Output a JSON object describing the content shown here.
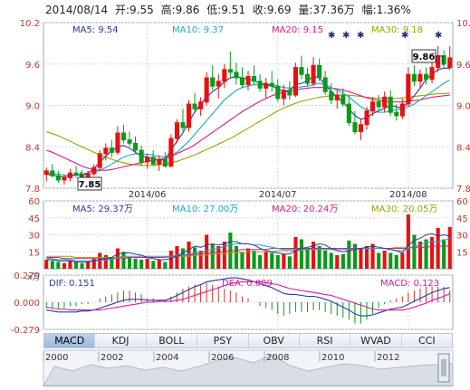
{
  "header": {
    "date": "2014/08/14",
    "open_label": "开:",
    "open": "9.55",
    "high_label": "高:",
    "high": "9.86",
    "low_label": "低:",
    "low": "9.51",
    "close_label": "收:",
    "close": "9.69",
    "volume_label": "量:",
    "volume": "37.36万",
    "change_label": "幅:",
    "change": "1.36%"
  },
  "ma_price": [
    {
      "label": "MA5: 9.54",
      "color": "#2a3a9e"
    },
    {
      "label": "MA10: 9.37",
      "color": "#17a9c9"
    },
    {
      "label": "MA20: 9.15",
      "color": "#e0197d"
    },
    {
      "label": "MA30: 9.18",
      "color": "#9aa500"
    }
  ],
  "ma_volume": [
    {
      "label": "MA5: 29.37万",
      "color": "#2a3a9e"
    },
    {
      "label": "MA10: 27.00万",
      "color": "#17a9c9"
    },
    {
      "label": "MA20: 20.24万",
      "color": "#e0197d"
    },
    {
      "label": "MA30: 20.05万",
      "color": "#9aa500"
    }
  ],
  "macd_labels": {
    "dif": "DIF: 0.151",
    "dea": "DEA: 0.089",
    "macd": "MACD: 0.123",
    "unit": "x万"
  },
  "annotations": {
    "max": "9.86",
    "min": "7.85"
  },
  "tabs": [
    "MACD",
    "KDJ",
    "BOLL",
    "PSY",
    "OBV",
    "RSI",
    "WVAD",
    "CCI"
  ],
  "active_tab": "MACD",
  "timeline_years": [
    "2000",
    "2002",
    "2004",
    "2006",
    "2008",
    "2010",
    "2012"
  ],
  "colors": {
    "up": "#e81010",
    "down": "#0a9a1a",
    "ma5": "#2a3a9e",
    "ma10": "#17a9c9",
    "ma20": "#e0197d",
    "ma30": "#9aa500",
    "dif": "#2a3a9e",
    "dea": "#d61aa8",
    "grid": "#d8d8d8"
  },
  "chart_data": {
    "type": "candlestick",
    "price_axis": {
      "ticks": [
        "10.2",
        "9.6",
        "9.0",
        "8.4",
        "7.8"
      ],
      "values": [
        10.2,
        9.6,
        9.0,
        8.4,
        7.8
      ],
      "ylim": [
        7.8,
        10.2
      ]
    },
    "volume_axis": {
      "ticks": [
        "60",
        "45",
        "30",
        "15"
      ],
      "values": [
        60,
        45,
        30,
        15
      ],
      "ylim": [
        0,
        60
      ],
      "unit": "万"
    },
    "macd_axis": {
      "ticks": [
        "0.279",
        "0.000",
        "-0.279"
      ],
      "values": [
        0.279,
        0,
        -0.279
      ],
      "ylim": [
        -0.279,
        0.279
      ]
    },
    "x_labels": [
      {
        "label": "2014/06",
        "index": 17
      },
      {
        "label": "2014/07",
        "index": 39
      },
      {
        "label": "2014/08",
        "index": 61
      }
    ],
    "candles": [
      {
        "o": 8.0,
        "h": 8.1,
        "l": 7.9,
        "c": 8.05
      },
      {
        "o": 8.05,
        "h": 8.15,
        "l": 7.95,
        "c": 7.98
      },
      {
        "o": 7.98,
        "h": 8.05,
        "l": 7.88,
        "c": 7.92
      },
      {
        "o": 7.92,
        "h": 8.0,
        "l": 7.85,
        "c": 7.95
      },
      {
        "o": 7.95,
        "h": 8.08,
        "l": 7.9,
        "c": 8.02
      },
      {
        "o": 8.02,
        "h": 8.12,
        "l": 7.96,
        "c": 8.0
      },
      {
        "o": 8.0,
        "h": 8.06,
        "l": 7.92,
        "c": 7.97
      },
      {
        "o": 7.97,
        "h": 8.05,
        "l": 7.9,
        "c": 8.01
      },
      {
        "o": 8.01,
        "h": 8.15,
        "l": 7.98,
        "c": 8.1
      },
      {
        "o": 8.1,
        "h": 8.35,
        "l": 8.05,
        "c": 8.3
      },
      {
        "o": 8.3,
        "h": 8.45,
        "l": 8.2,
        "c": 8.38
      },
      {
        "o": 8.38,
        "h": 8.5,
        "l": 8.25,
        "c": 8.32
      },
      {
        "o": 8.32,
        "h": 8.7,
        "l": 8.28,
        "c": 8.6
      },
      {
        "o": 8.6,
        "h": 8.72,
        "l": 8.45,
        "c": 8.5
      },
      {
        "o": 8.5,
        "h": 8.62,
        "l": 8.4,
        "c": 8.45
      },
      {
        "o": 8.45,
        "h": 8.55,
        "l": 8.3,
        "c": 8.35
      },
      {
        "o": 8.35,
        "h": 8.42,
        "l": 8.12,
        "c": 8.18
      },
      {
        "o": 8.18,
        "h": 8.3,
        "l": 8.08,
        "c": 8.25
      },
      {
        "o": 8.25,
        "h": 8.35,
        "l": 8.12,
        "c": 8.15
      },
      {
        "o": 8.15,
        "h": 8.28,
        "l": 8.05,
        "c": 8.22
      },
      {
        "o": 8.22,
        "h": 8.32,
        "l": 8.1,
        "c": 8.12
      },
      {
        "o": 8.12,
        "h": 8.58,
        "l": 8.1,
        "c": 8.52
      },
      {
        "o": 8.52,
        "h": 8.8,
        "l": 8.45,
        "c": 8.75
      },
      {
        "o": 8.75,
        "h": 8.95,
        "l": 8.62,
        "c": 8.68
      },
      {
        "o": 8.68,
        "h": 9.08,
        "l": 8.62,
        "c": 9.02
      },
      {
        "o": 9.02,
        "h": 9.18,
        "l": 8.9,
        "c": 8.95
      },
      {
        "o": 8.95,
        "h": 9.12,
        "l": 8.85,
        "c": 9.05
      },
      {
        "o": 9.05,
        "h": 9.48,
        "l": 9.0,
        "c": 9.4
      },
      {
        "o": 9.4,
        "h": 9.58,
        "l": 9.22,
        "c": 9.28
      },
      {
        "o": 9.28,
        "h": 9.45,
        "l": 9.1,
        "c": 9.35
      },
      {
        "o": 9.35,
        "h": 9.6,
        "l": 9.25,
        "c": 9.52
      },
      {
        "o": 9.52,
        "h": 9.78,
        "l": 9.4,
        "c": 9.48
      },
      {
        "o": 9.48,
        "h": 9.62,
        "l": 9.3,
        "c": 9.4
      },
      {
        "o": 9.4,
        "h": 9.55,
        "l": 9.25,
        "c": 9.3
      },
      {
        "o": 9.3,
        "h": 9.5,
        "l": 9.22,
        "c": 9.42
      },
      {
        "o": 9.42,
        "h": 9.58,
        "l": 9.3,
        "c": 9.35
      },
      {
        "o": 9.35,
        "h": 9.45,
        "l": 9.2,
        "c": 9.25
      },
      {
        "o": 9.25,
        "h": 9.4,
        "l": 9.1,
        "c": 9.32
      },
      {
        "o": 9.32,
        "h": 9.5,
        "l": 9.2,
        "c": 9.28
      },
      {
        "o": 9.28,
        "h": 9.38,
        "l": 9.05,
        "c": 9.1
      },
      {
        "o": 9.1,
        "h": 9.3,
        "l": 9.0,
        "c": 9.22
      },
      {
        "o": 9.22,
        "h": 9.35,
        "l": 9.08,
        "c": 9.15
      },
      {
        "o": 9.15,
        "h": 9.62,
        "l": 9.12,
        "c": 9.55
      },
      {
        "o": 9.55,
        "h": 9.72,
        "l": 9.38,
        "c": 9.45
      },
      {
        "o": 9.45,
        "h": 9.55,
        "l": 9.28,
        "c": 9.32
      },
      {
        "o": 9.32,
        "h": 9.7,
        "l": 9.28,
        "c": 9.58
      },
      {
        "o": 9.58,
        "h": 9.68,
        "l": 9.35,
        "c": 9.4
      },
      {
        "o": 9.4,
        "h": 9.5,
        "l": 9.15,
        "c": 9.2
      },
      {
        "o": 9.2,
        "h": 9.32,
        "l": 9.02,
        "c": 9.08
      },
      {
        "o": 9.08,
        "h": 9.22,
        "l": 8.95,
        "c": 9.15
      },
      {
        "o": 9.15,
        "h": 9.25,
        "l": 8.98,
        "c": 9.02
      },
      {
        "o": 9.02,
        "h": 9.15,
        "l": 8.7,
        "c": 8.75
      },
      {
        "o": 8.75,
        "h": 8.92,
        "l": 8.58,
        "c": 8.62
      },
      {
        "o": 8.62,
        "h": 8.8,
        "l": 8.5,
        "c": 8.72
      },
      {
        "o": 8.72,
        "h": 8.98,
        "l": 8.65,
        "c": 8.92
      },
      {
        "o": 8.92,
        "h": 9.12,
        "l": 8.85,
        "c": 9.05
      },
      {
        "o": 9.05,
        "h": 9.15,
        "l": 8.92,
        "c": 8.98
      },
      {
        "o": 8.98,
        "h": 9.2,
        "l": 8.9,
        "c": 9.12
      },
      {
        "o": 9.12,
        "h": 9.22,
        "l": 8.85,
        "c": 8.9
      },
      {
        "o": 8.9,
        "h": 9.02,
        "l": 8.78,
        "c": 8.85
      },
      {
        "o": 8.85,
        "h": 9.1,
        "l": 8.8,
        "c": 9.02
      },
      {
        "o": 9.02,
        "h": 9.55,
        "l": 8.98,
        "c": 9.45
      },
      {
        "o": 9.45,
        "h": 9.58,
        "l": 9.28,
        "c": 9.35
      },
      {
        "o": 9.35,
        "h": 9.52,
        "l": 9.25,
        "c": 9.45
      },
      {
        "o": 9.45,
        "h": 9.55,
        "l": 9.3,
        "c": 9.38
      },
      {
        "o": 9.38,
        "h": 9.62,
        "l": 9.32,
        "c": 9.55
      },
      {
        "o": 9.55,
        "h": 9.86,
        "l": 9.48,
        "c": 9.72
      },
      {
        "o": 9.72,
        "h": 9.8,
        "l": 9.55,
        "c": 9.6
      },
      {
        "o": 9.55,
        "h": 9.86,
        "l": 9.51,
        "c": 9.69
      }
    ],
    "volume": [
      8,
      7,
      6,
      5,
      7,
      6,
      5,
      6,
      9,
      14,
      12,
      10,
      18,
      15,
      10,
      9,
      8,
      9,
      7,
      8,
      6,
      16,
      20,
      18,
      24,
      19,
      16,
      30,
      22,
      20,
      24,
      32,
      20,
      15,
      18,
      16,
      12,
      15,
      14,
      12,
      13,
      11,
      28,
      26,
      18,
      24,
      20,
      16,
      14,
      12,
      13,
      25,
      22,
      18,
      20,
      22,
      14,
      16,
      14,
      12,
      14,
      48,
      30,
      24,
      26,
      28,
      36,
      26,
      37
    ],
    "ma_lines": {
      "ma5": [
        8.0,
        7.99,
        7.97,
        7.96,
        7.98,
        7.99,
        8.0,
        8.02,
        8.08,
        8.18,
        8.26,
        8.34,
        8.4,
        8.42,
        8.38,
        8.32,
        8.27,
        8.25,
        8.22,
        8.2,
        8.22,
        8.35,
        8.48,
        8.6,
        8.76,
        8.9,
        9.02,
        9.12,
        9.2,
        9.26,
        9.34,
        9.4,
        9.42,
        9.4,
        9.38,
        9.36,
        9.32,
        9.3,
        9.28,
        9.24,
        9.2,
        9.22,
        9.3,
        9.32,
        9.36,
        9.42,
        9.4,
        9.3,
        9.2,
        9.12,
        9.05,
        8.95,
        8.85,
        8.8,
        8.82,
        8.88,
        8.92,
        8.96,
        9.0,
        8.98,
        8.96,
        9.04,
        9.14,
        9.25,
        9.38,
        9.45,
        9.52,
        9.54,
        9.54
      ],
      "ma10": [
        8.02,
        8.01,
        8.0,
        7.99,
        7.99,
        7.99,
        7.99,
        8.0,
        8.02,
        8.06,
        8.1,
        8.15,
        8.2,
        8.25,
        8.28,
        8.3,
        8.3,
        8.29,
        8.28,
        8.26,
        8.25,
        8.28,
        8.32,
        8.4,
        8.48,
        8.58,
        8.68,
        8.78,
        8.88,
        8.98,
        9.08,
        9.15,
        9.22,
        9.26,
        9.28,
        9.3,
        9.3,
        9.3,
        9.3,
        9.28,
        9.26,
        9.25,
        9.26,
        9.27,
        9.28,
        9.3,
        9.32,
        9.3,
        9.26,
        9.22,
        9.18,
        9.12,
        9.05,
        8.98,
        8.94,
        8.92,
        8.9,
        8.9,
        8.92,
        8.94,
        8.95,
        8.98,
        9.02,
        9.08,
        9.14,
        9.2,
        9.26,
        9.32,
        9.37
      ],
      "ma20": [
        8.35,
        8.32,
        8.28,
        8.24,
        8.2,
        8.16,
        8.12,
        8.09,
        8.07,
        8.06,
        8.06,
        8.07,
        8.09,
        8.11,
        8.13,
        8.15,
        8.17,
        8.19,
        8.21,
        8.22,
        8.23,
        8.26,
        8.3,
        8.34,
        8.38,
        8.43,
        8.49,
        8.55,
        8.61,
        8.67,
        8.73,
        8.79,
        8.85,
        8.91,
        8.96,
        9.01,
        9.06,
        9.1,
        9.14,
        9.17,
        9.19,
        9.21,
        9.23,
        9.24,
        9.25,
        9.26,
        9.26,
        9.26,
        9.25,
        9.24,
        9.22,
        9.2,
        9.17,
        9.14,
        9.11,
        9.09,
        9.07,
        9.06,
        9.05,
        9.05,
        9.05,
        9.06,
        9.07,
        9.08,
        9.1,
        9.12,
        9.13,
        9.14,
        9.15
      ],
      "ma30": [
        8.62,
        8.59,
        8.56,
        8.52,
        8.48,
        8.44,
        8.4,
        8.36,
        8.32,
        8.28,
        8.25,
        8.22,
        8.19,
        8.17,
        8.15,
        8.14,
        8.13,
        8.13,
        8.13,
        8.14,
        8.15,
        8.17,
        8.19,
        8.22,
        8.25,
        8.28,
        8.32,
        8.36,
        8.4,
        8.44,
        8.48,
        8.52,
        8.57,
        8.62,
        8.67,
        8.72,
        8.77,
        8.82,
        8.87,
        8.92,
        8.96,
        9.0,
        9.03,
        9.06,
        9.08,
        9.1,
        9.12,
        9.13,
        9.14,
        9.15,
        9.15,
        9.15,
        9.14,
        9.13,
        9.12,
        9.11,
        9.1,
        9.1,
        9.1,
        9.1,
        9.11,
        9.12,
        9.13,
        9.14,
        9.15,
        9.16,
        9.17,
        9.17,
        9.18
      ]
    },
    "volume_ma": {
      "ma5": [
        8,
        8,
        7,
        7,
        7,
        6,
        6,
        6,
        7,
        8,
        9,
        10,
        13,
        14,
        14,
        13,
        12,
        10,
        9,
        8,
        8,
        9,
        11,
        14,
        17,
        20,
        19,
        21,
        22,
        21,
        22,
        24,
        24,
        22,
        22,
        21,
        18,
        16,
        15,
        14,
        13,
        13,
        16,
        18,
        19,
        20,
        22,
        21,
        18,
        16,
        15,
        16,
        17,
        18,
        19,
        20,
        19,
        18,
        17,
        16,
        14,
        21,
        25,
        27,
        30,
        31,
        29,
        30,
        29
      ],
      "ma10": [
        9,
        9,
        8,
        8,
        8,
        7,
        7,
        7,
        7,
        7,
        8,
        8,
        10,
        11,
        11,
        11,
        11,
        11,
        11,
        11,
        11,
        11,
        12,
        12,
        13,
        14,
        15,
        16,
        17,
        18,
        20,
        21,
        22,
        22,
        22,
        21,
        21,
        20,
        19,
        18,
        17,
        17,
        17,
        17,
        17,
        17,
        17,
        17,
        17,
        17,
        17,
        17,
        17,
        18,
        18,
        18,
        18,
        18,
        17,
        16,
        16,
        18,
        20,
        21,
        23,
        24,
        24,
        25,
        27
      ],
      "ma20": [
        10,
        10,
        10,
        9,
        9,
        9,
        9,
        9,
        9,
        9,
        9,
        9,
        9,
        9,
        10,
        10,
        10,
        10,
        10,
        10,
        10,
        11,
        11,
        12,
        12,
        13,
        13,
        14,
        14,
        15,
        15,
        16,
        16,
        17,
        17,
        17,
        17,
        17,
        18,
        18,
        18,
        18,
        18,
        18,
        18,
        18,
        18,
        18,
        18,
        18,
        18,
        18,
        18,
        18,
        18,
        18,
        18,
        18,
        18,
        18,
        18,
        18,
        19,
        19,
        19,
        20,
        20,
        20,
        20
      ],
      "ma30": [
        11,
        11,
        11,
        11,
        11,
        10,
        10,
        10,
        10,
        10,
        10,
        10,
        10,
        10,
        10,
        10,
        10,
        10,
        10,
        10,
        10,
        11,
        11,
        11,
        11,
        12,
        12,
        12,
        13,
        13,
        13,
        14,
        14,
        14,
        15,
        15,
        15,
        15,
        15,
        16,
        16,
        16,
        16,
        16,
        17,
        17,
        17,
        17,
        17,
        18,
        18,
        18,
        18,
        18,
        18,
        18,
        18,
        18,
        18,
        19,
        19,
        19,
        19,
        19,
        19,
        20,
        20,
        20,
        20
      ]
    },
    "macd": {
      "dif": [
        -0.08,
        -0.09,
        -0.1,
        -0.1,
        -0.1,
        -0.1,
        -0.09,
        -0.09,
        -0.08,
        -0.06,
        -0.04,
        -0.02,
        0.0,
        0.02,
        0.03,
        0.03,
        0.03,
        0.02,
        0.02,
        0.02,
        0.02,
        0.04,
        0.07,
        0.1,
        0.13,
        0.16,
        0.18,
        0.21,
        0.22,
        0.23,
        0.24,
        0.25,
        0.25,
        0.24,
        0.23,
        0.21,
        0.19,
        0.17,
        0.15,
        0.12,
        0.09,
        0.08,
        0.08,
        0.07,
        0.06,
        0.06,
        0.05,
        0.03,
        0.01,
        -0.02,
        -0.05,
        -0.08,
        -0.12,
        -0.14,
        -0.14,
        -0.13,
        -0.11,
        -0.09,
        -0.07,
        -0.06,
        -0.05,
        -0.02,
        0.01,
        0.04,
        0.07,
        0.1,
        0.12,
        0.14,
        0.151
      ],
      "dea": [
        -0.05,
        -0.06,
        -0.07,
        -0.07,
        -0.08,
        -0.08,
        -0.08,
        -0.08,
        -0.08,
        -0.08,
        -0.07,
        -0.06,
        -0.05,
        -0.04,
        -0.03,
        -0.02,
        -0.01,
        0.0,
        0.0,
        0.01,
        0.01,
        0.01,
        0.02,
        0.03,
        0.05,
        0.07,
        0.09,
        0.11,
        0.13,
        0.15,
        0.17,
        0.19,
        0.2,
        0.21,
        0.21,
        0.21,
        0.21,
        0.2,
        0.19,
        0.18,
        0.16,
        0.14,
        0.13,
        0.12,
        0.11,
        0.1,
        0.09,
        0.08,
        0.07,
        0.05,
        0.03,
        0.01,
        -0.01,
        -0.03,
        -0.05,
        -0.07,
        -0.08,
        -0.08,
        -0.08,
        -0.08,
        -0.08,
        -0.07,
        -0.05,
        -0.03,
        -0.01,
        0.02,
        0.04,
        0.06,
        0.089
      ],
      "hist": [
        -0.06,
        -0.06,
        -0.06,
        -0.06,
        -0.04,
        -0.04,
        -0.02,
        -0.02,
        0.0,
        0.04,
        0.06,
        0.08,
        0.1,
        0.12,
        0.12,
        0.1,
        0.08,
        0.04,
        0.04,
        0.02,
        0.02,
        0.06,
        0.1,
        0.14,
        0.16,
        0.18,
        0.18,
        0.2,
        0.18,
        0.16,
        0.14,
        0.12,
        0.1,
        0.06,
        0.04,
        0.0,
        -0.04,
        -0.06,
        -0.08,
        -0.12,
        -0.14,
        -0.12,
        -0.1,
        -0.1,
        -0.1,
        -0.08,
        -0.08,
        -0.1,
        -0.12,
        -0.14,
        -0.16,
        -0.18,
        -0.22,
        -0.22,
        -0.18,
        -0.12,
        -0.06,
        -0.02,
        0.02,
        0.04,
        0.06,
        0.1,
        0.12,
        0.14,
        0.16,
        0.16,
        0.16,
        0.16,
        0.123
      ]
    }
  }
}
